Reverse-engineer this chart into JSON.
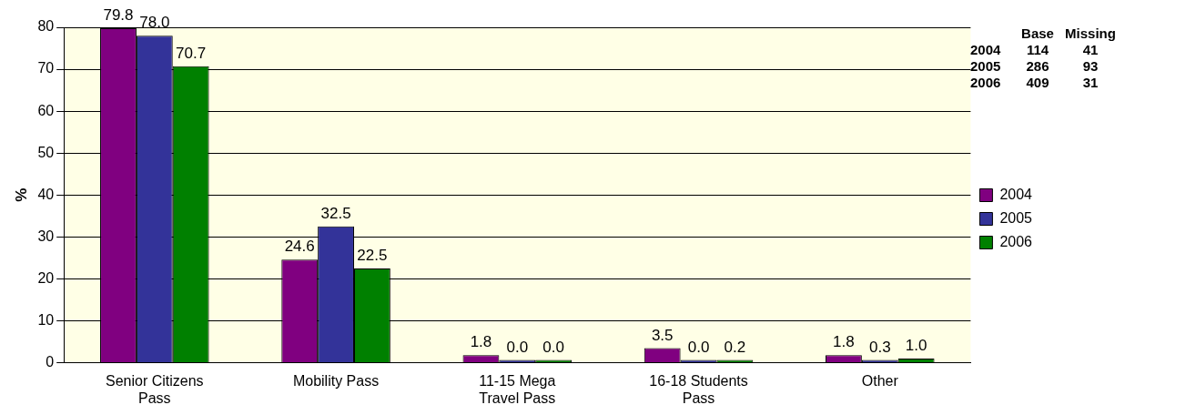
{
  "chart_data": {
    "type": "bar",
    "ylabel": "%",
    "categories": [
      "Senior Citizens Pass",
      "Mobility Pass",
      "11-15 Mega Travel Pass",
      "16-18 Students Pass",
      "Other"
    ],
    "series": [
      {
        "name": "2004",
        "color": "#800080",
        "values": [
          79.8,
          24.6,
          1.8,
          3.5,
          1.8
        ],
        "value_labels": [
          "79.8",
          "24.6",
          "1.8",
          "3.5",
          "1.8"
        ]
      },
      {
        "name": "2005",
        "color": "#333399",
        "values": [
          78.0,
          32.5,
          0.0,
          0.0,
          0.3
        ],
        "value_labels": [
          "78.0",
          "32.5",
          "0.0",
          "0.0",
          "0.3"
        ]
      },
      {
        "name": "2006",
        "color": "#008000",
        "values": [
          70.7,
          22.5,
          0.0,
          0.2,
          1.0
        ],
        "value_labels": [
          "70.7",
          "22.5",
          "0.0",
          "0.2",
          "1.0"
        ]
      }
    ],
    "ylim": [
      0,
      80
    ],
    "yticks": [
      0,
      10,
      20,
      30,
      40,
      50,
      60,
      70,
      80
    ],
    "grid": "y",
    "legend": "right",
    "annotations": [
      "Base",
      "Missing",
      "2004",
      "114",
      "41",
      "2005",
      "286",
      "93",
      "2006",
      "409",
      "31"
    ]
  }
}
